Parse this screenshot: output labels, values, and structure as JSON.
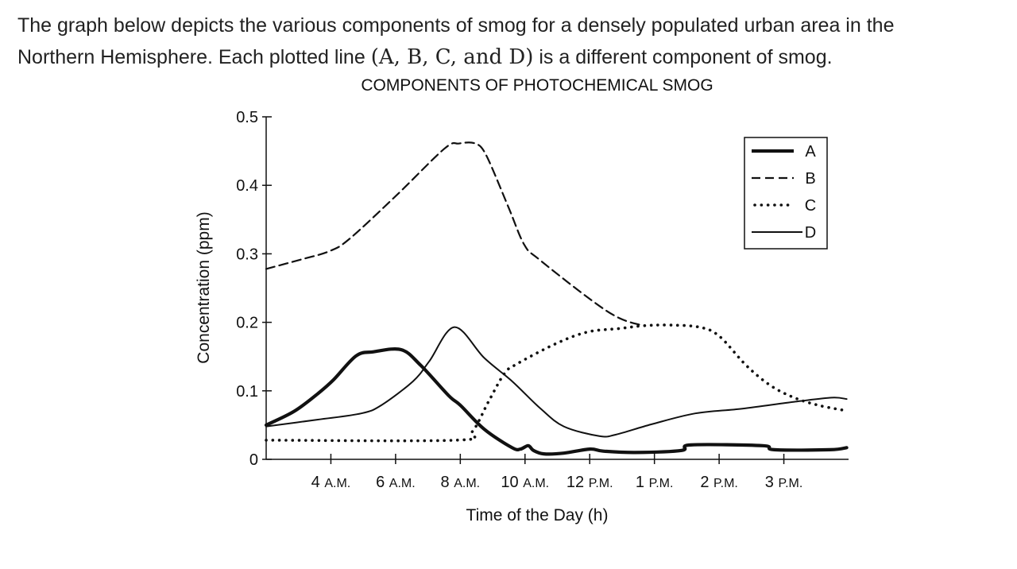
{
  "question": {
    "line1": "The graph below depicts the various components of smog for a densely populated urban area in the",
    "line2_pre": "Northern Hemisphere. Each plotted line ",
    "line2_math": "(A, B, C, and D)",
    "line2_post": " is a different component of smog."
  },
  "chart_data": {
    "type": "line",
    "title": "COMPONENTS OF PHOTOCHEMICAL SMOG",
    "xlabel": "Time of the Day (h)",
    "ylabel": "Concentration (ppm)",
    "x_note": "x measured in tick index: 4 A.M. = 1, 6 A.M. = 2, ... 3 P.M. = 8",
    "xlim": [
      0,
      9
    ],
    "ylim": [
      0,
      0.5
    ],
    "yticks": [
      {
        "value": 0,
        "label": "0"
      },
      {
        "value": 0.1,
        "label": "0.1"
      },
      {
        "value": 0.2,
        "label": "0.2"
      },
      {
        "value": 0.3,
        "label": "0.3"
      },
      {
        "value": 0.4,
        "label": "0.4"
      },
      {
        "value": 0.5,
        "label": "0.5"
      }
    ],
    "xticks": [
      {
        "value": 1,
        "num": "4",
        "suffix": "A.M."
      },
      {
        "value": 2,
        "num": "6",
        "suffix": "A.M."
      },
      {
        "value": 3,
        "num": "8",
        "suffix": "A.M."
      },
      {
        "value": 4,
        "num": "10",
        "suffix": "A.M."
      },
      {
        "value": 5,
        "num": "12",
        "suffix": "P.M."
      },
      {
        "value": 6,
        "num": "1",
        "suffix": "P.M."
      },
      {
        "value": 7,
        "num": "2",
        "suffix": "P.M."
      },
      {
        "value": 8,
        "num": "3",
        "suffix": "P.M."
      }
    ],
    "grid": false,
    "legend_position": "top-right",
    "series": [
      {
        "name": "A",
        "style": "thick",
        "points": [
          [
            0,
            0.05
          ],
          [
            0.43,
            0.07
          ],
          [
            0.8,
            0.096
          ],
          [
            1.04,
            0.116
          ],
          [
            1.39,
            0.151
          ],
          [
            1.66,
            0.157
          ],
          [
            2.09,
            0.16
          ],
          [
            2.39,
            0.137
          ],
          [
            2.82,
            0.093
          ],
          [
            3.0,
            0.079
          ],
          [
            3.37,
            0.044
          ],
          [
            3.8,
            0.017
          ],
          [
            3.93,
            0.015
          ],
          [
            4.05,
            0.02
          ],
          [
            4.13,
            0.013
          ],
          [
            4.29,
            0.008
          ],
          [
            4.6,
            0.009
          ],
          [
            5.0,
            0.015
          ],
          [
            5.21,
            0.012
          ],
          [
            5.7,
            0.01
          ],
          [
            6.42,
            0.013
          ],
          [
            6.56,
            0.021
          ],
          [
            7.67,
            0.02
          ],
          [
            7.85,
            0.014
          ],
          [
            8.71,
            0.014
          ],
          [
            8.97,
            0.017
          ]
        ]
      },
      {
        "name": "B",
        "style": "dashed",
        "points": [
          [
            0,
            0.278
          ],
          [
            0.55,
            0.292
          ],
          [
            0.98,
            0.304
          ],
          [
            1.29,
            0.322
          ],
          [
            2.02,
            0.386
          ],
          [
            2.76,
            0.454
          ],
          [
            2.98,
            0.461
          ],
          [
            3.23,
            0.461
          ],
          [
            3.4,
            0.444
          ],
          [
            3.74,
            0.369
          ],
          [
            3.99,
            0.313
          ],
          [
            4.23,
            0.291
          ],
          [
            5.03,
            0.232
          ],
          [
            5.46,
            0.206
          ],
          [
            5.83,
            0.195
          ]
        ]
      },
      {
        "name": "C",
        "style": "dotted",
        "points": [
          [
            0,
            0.028
          ],
          [
            2.94,
            0.028
          ],
          [
            3.19,
            0.041
          ],
          [
            3.44,
            0.085
          ],
          [
            3.68,
            0.125
          ],
          [
            3.87,
            0.139
          ],
          [
            4.48,
            0.169
          ],
          [
            4.97,
            0.186
          ],
          [
            5.46,
            0.191
          ],
          [
            5.83,
            0.195
          ],
          [
            6.2,
            0.196
          ],
          [
            6.69,
            0.193
          ],
          [
            7.0,
            0.18
          ],
          [
            7.42,
            0.137
          ],
          [
            7.79,
            0.108
          ],
          [
            8.16,
            0.09
          ],
          [
            8.53,
            0.079
          ],
          [
            8.9,
            0.072
          ]
        ]
      },
      {
        "name": "D",
        "style": "thin",
        "points": [
          [
            0,
            0.048
          ],
          [
            0.8,
            0.058
          ],
          [
            1.47,
            0.067
          ],
          [
            1.78,
            0.079
          ],
          [
            2.27,
            0.114
          ],
          [
            2.52,
            0.143
          ],
          [
            2.91,
            0.193
          ],
          [
            3.37,
            0.148
          ],
          [
            3.8,
            0.114
          ],
          [
            4.23,
            0.075
          ],
          [
            4.6,
            0.048
          ],
          [
            5.15,
            0.034
          ],
          [
            5.4,
            0.036
          ],
          [
            5.95,
            0.051
          ],
          [
            6.63,
            0.067
          ],
          [
            7.36,
            0.074
          ],
          [
            8.16,
            0.084
          ],
          [
            8.74,
            0.09
          ],
          [
            8.97,
            0.088
          ]
        ]
      }
    ]
  }
}
